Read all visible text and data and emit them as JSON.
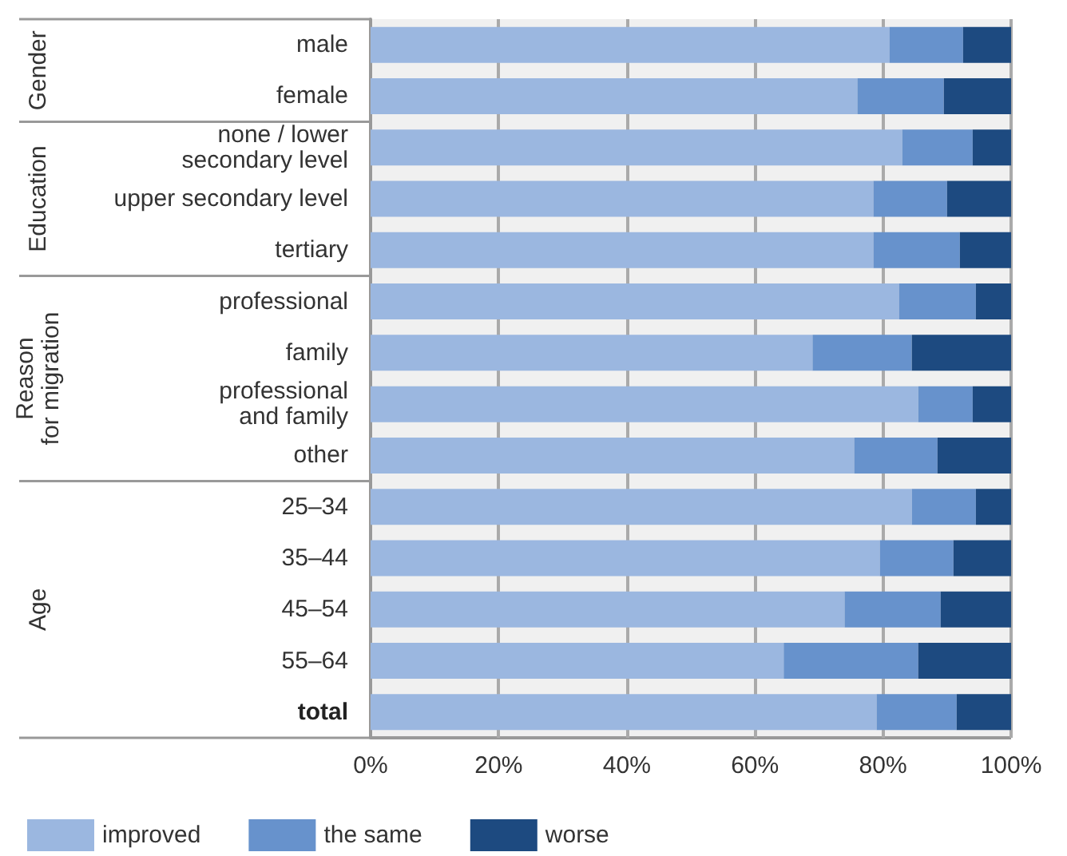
{
  "chart_data": {
    "type": "bar",
    "orientation": "horizontal",
    "stacked": true,
    "categories": [
      "male",
      "female",
      "none / lower\nsecondary level",
      "upper secondary level",
      "tertiary",
      "professional",
      "family",
      "professional\nand family",
      "other",
      "25–34",
      "35–44",
      "45–54",
      "55–64",
      "total"
    ],
    "series": [
      {
        "name": "improved",
        "color": "#9bb7e0",
        "values": [
          81,
          76,
          83,
          78.5,
          78.5,
          82.5,
          69,
          85.5,
          75.5,
          84.5,
          79.5,
          74,
          64.5,
          79
        ]
      },
      {
        "name": "the same",
        "color": "#6792cc",
        "values": [
          11.5,
          13.5,
          11,
          11.5,
          13.5,
          12,
          15.5,
          8.5,
          13,
          10,
          11.5,
          15,
          21,
          12.5
        ]
      },
      {
        "name": "worse",
        "color": "#1d4a80",
        "values": [
          7.5,
          10.5,
          6,
          10,
          8,
          5.5,
          15.5,
          6,
          11.5,
          5.5,
          9,
          11,
          14.5,
          8.5
        ]
      }
    ],
    "xlim": [
      0,
      100
    ],
    "xticks": [
      {
        "value": 0,
        "label": "0%"
      },
      {
        "value": 20,
        "label": "20%"
      },
      {
        "value": 40,
        "label": "40%"
      },
      {
        "value": 60,
        "label": "60%"
      },
      {
        "value": 80,
        "label": "80%"
      },
      {
        "value": 100,
        "label": "100%"
      }
    ],
    "grid": "x",
    "legend": "bottom left",
    "annotations": [
      "Gender",
      "Education",
      "Reason\nfor migration",
      "Age"
    ]
  }
}
